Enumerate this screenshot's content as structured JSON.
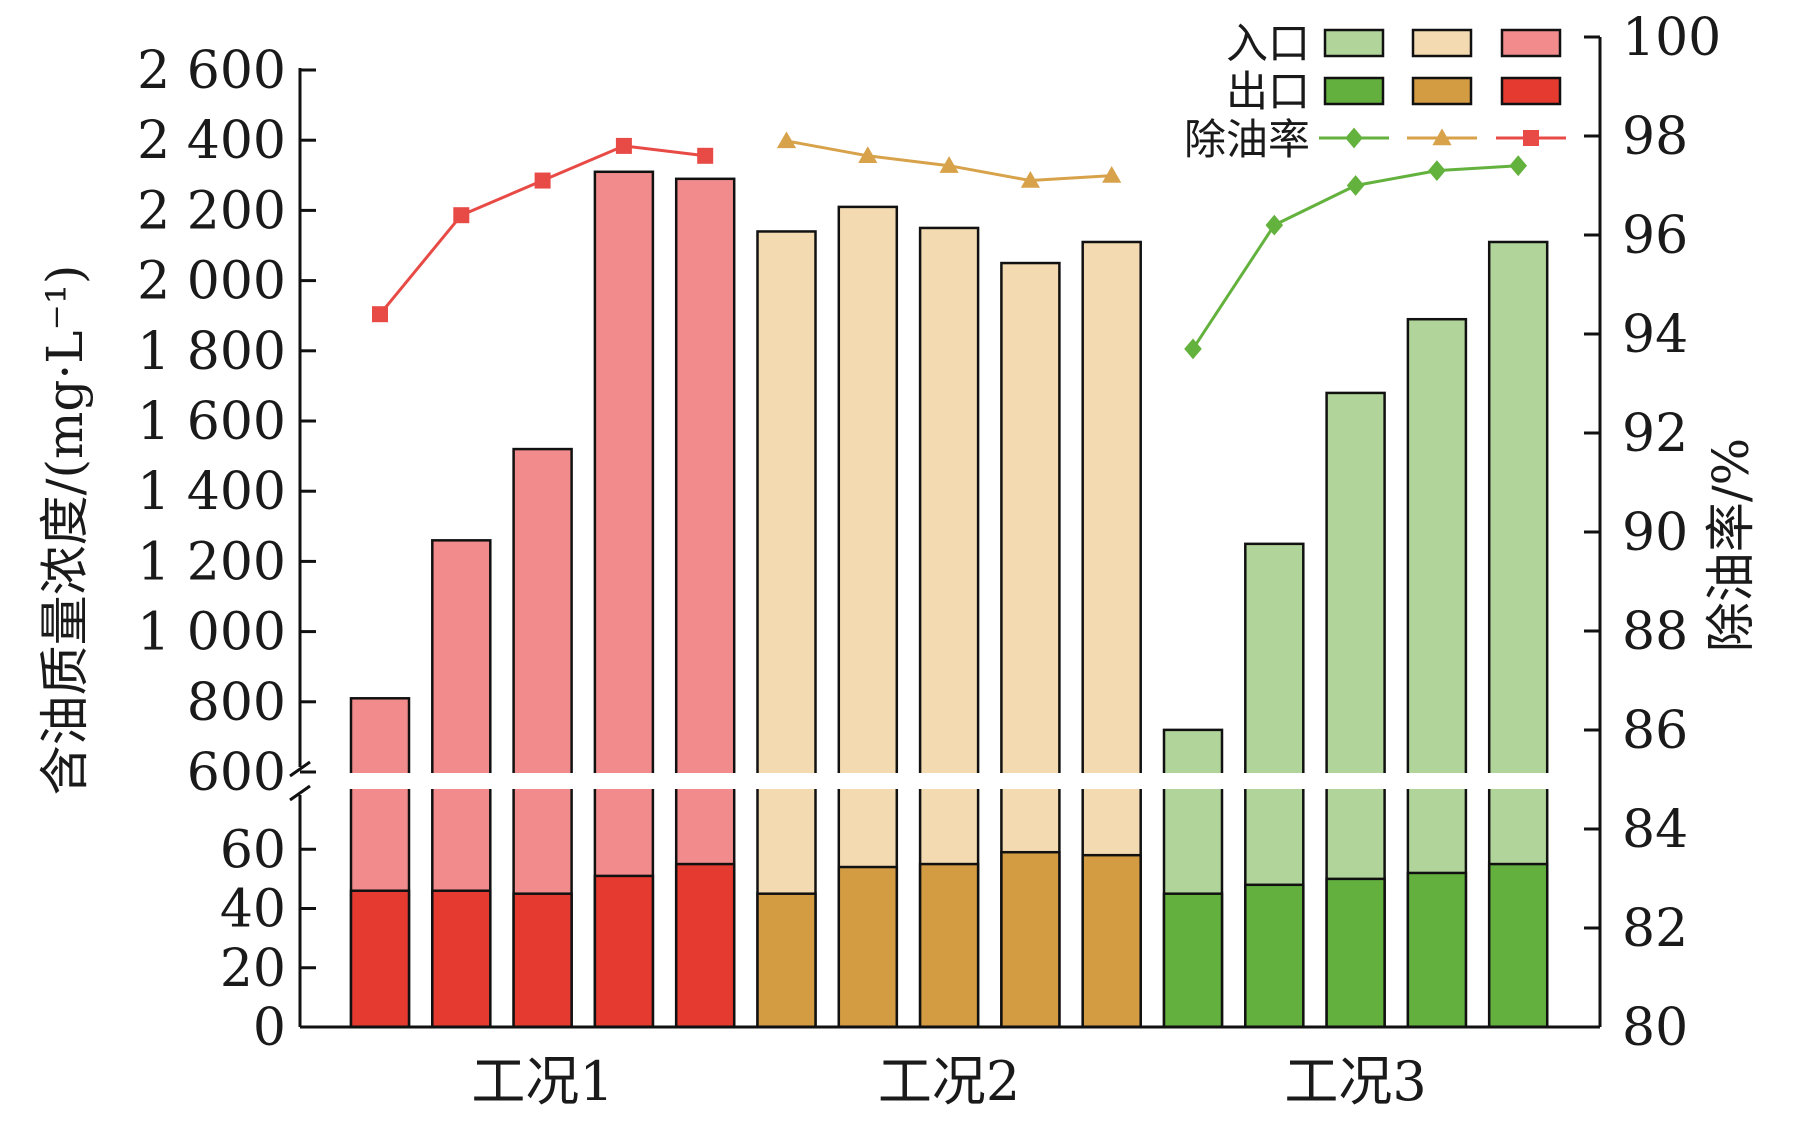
{
  "chart_data": {
    "type": "bar",
    "groups": [
      {
        "label": "工况1",
        "color_in": "#f28c8c",
        "color_out": "#e43a30",
        "line_color": "#e84a45",
        "marker": "square",
        "inlet": [
          810,
          1260,
          1520,
          2310,
          2290
        ],
        "outlet": [
          46,
          46,
          45,
          51,
          55
        ],
        "removal": [
          94.4,
          96.4,
          97.1,
          97.8,
          97.6
        ]
      },
      {
        "label": "工况2",
        "color_in": "#f3dab0",
        "color_out": "#d39b42",
        "line_color": "#d8a24a",
        "marker": "triangle",
        "inlet": [
          2140,
          2210,
          2150,
          2050,
          2110
        ],
        "outlet": [
          45,
          54,
          55,
          59,
          58
        ],
        "removal": [
          97.9,
          97.6,
          97.4,
          97.1,
          97.2
        ]
      },
      {
        "label": "工况3",
        "color_in": "#b0d49a",
        "color_out": "#63b03f",
        "line_color": "#64b23e",
        "marker": "diamond",
        "inlet": [
          720,
          1250,
          1680,
          1890,
          2110
        ],
        "outlet": [
          45,
          48,
          50,
          52,
          55
        ],
        "removal": [
          93.7,
          96.2,
          97.0,
          97.3,
          97.4
        ]
      }
    ],
    "ylabel": "含油质量浓度/(mg·L⁻¹)",
    "y2label": "除油率/%",
    "y_upper_ticks": [
      "600",
      "800",
      "1 000",
      "1 200",
      "1 400",
      "1 600",
      "1 800",
      "2 000",
      "2 200",
      "2 400",
      "2 600"
    ],
    "y_lower_ticks": [
      "0",
      "20",
      "40",
      "60"
    ],
    "y2_ticks": [
      "80",
      "82",
      "84",
      "86",
      "88",
      "90",
      "92",
      "94",
      "96",
      "98",
      "100"
    ],
    "y_upper_range": [
      600,
      2600
    ],
    "y_lower_range": [
      0,
      80
    ],
    "y2_range": [
      80,
      100
    ],
    "legend": {
      "inlet": "入口",
      "outlet": "出口",
      "removal": "除油率"
    }
  }
}
